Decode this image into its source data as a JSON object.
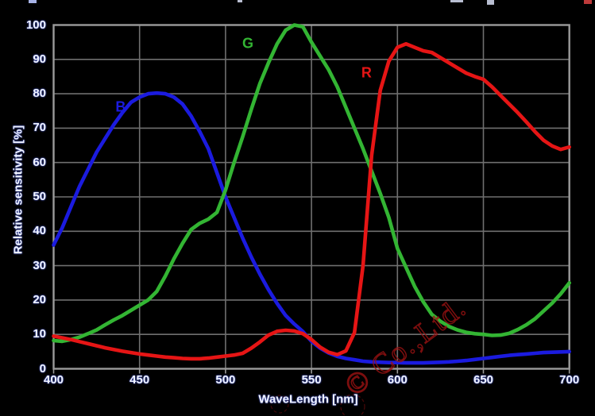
{
  "axes": {
    "x": {
      "title": "WaveLength [nm]",
      "ticks": [
        400,
        450,
        500,
        550,
        600,
        650,
        700
      ]
    },
    "y": {
      "title": "Relative sensitivity [%]",
      "ticks": [
        0,
        10,
        20,
        30,
        40,
        50,
        60,
        70,
        80,
        90,
        100
      ]
    }
  },
  "watermark": {
    "text": "© Co.,Ltd.",
    "color": "#9c1212"
  },
  "colors": {
    "background": "#000000",
    "grid": "#6f6f6f",
    "border": "#9a9a9a",
    "tick_text": "#f0f4ff"
  },
  "chart_data": {
    "type": "line",
    "title": "",
    "xlabel": "WaveLength [nm]",
    "ylabel": "Relative sensitivity [%]",
    "xlim": [
      400,
      700
    ],
    "ylim": [
      0,
      100
    ],
    "grid": true,
    "legend_position": "inline-curve-labels",
    "x": [
      400,
      405,
      410,
      415,
      420,
      425,
      430,
      435,
      440,
      445,
      450,
      455,
      460,
      465,
      470,
      475,
      480,
      485,
      490,
      495,
      500,
      505,
      510,
      515,
      520,
      525,
      530,
      535,
      540,
      545,
      550,
      555,
      560,
      565,
      570,
      575,
      580,
      585,
      590,
      595,
      600,
      605,
      610,
      615,
      620,
      625,
      630,
      635,
      640,
      645,
      650,
      655,
      660,
      665,
      670,
      675,
      680,
      685,
      690,
      695,
      700
    ],
    "series": [
      {
        "name": "B",
        "color": "#1b1bdf",
        "label_at": {
          "x": 439,
          "y": 76
        },
        "values": [
          36,
          41,
          47,
          53,
          58,
          63,
          67,
          71,
          74.5,
          77.5,
          79,
          80,
          80.2,
          80,
          79,
          77,
          73.5,
          69,
          64,
          57,
          50,
          44,
          38,
          32.5,
          27.5,
          23,
          19,
          15.5,
          13,
          10.8,
          8,
          6,
          4.6,
          3.6,
          3,
          2.6,
          2.2,
          2,
          1.9,
          1.8,
          1.8,
          1.7,
          1.7,
          1.7,
          1.8,
          1.9,
          2,
          2.2,
          2.4,
          2.7,
          3,
          3.3,
          3.6,
          3.9,
          4.1,
          4.3,
          4.5,
          4.7,
          4.8,
          4.9,
          5
        ]
      },
      {
        "name": "G",
        "color": "#33b533",
        "label_at": {
          "x": 513,
          "y": 94.5
        },
        "values": [
          8.2,
          8,
          8.5,
          9.2,
          10.2,
          11.3,
          12.8,
          14.2,
          15.5,
          17,
          18.5,
          20,
          22.5,
          27,
          32,
          36.5,
          40.5,
          42.3,
          43.5,
          45.5,
          52,
          60,
          67.5,
          75.5,
          83,
          89,
          94.5,
          98.5,
          100,
          99.5,
          95,
          91,
          87,
          82,
          76,
          70,
          64,
          57.5,
          51,
          44,
          35,
          29.5,
          24,
          19.5,
          15.8,
          13.8,
          12.3,
          11.3,
          10.6,
          10.2,
          10,
          9.7,
          9.8,
          10.3,
          11.4,
          12.8,
          14.5,
          16.8,
          19.1,
          21.8,
          25
        ]
      },
      {
        "name": "R",
        "color": "#e61515",
        "label_at": {
          "x": 582,
          "y": 86
        },
        "values": [
          9.5,
          9,
          8.5,
          7.9,
          7.3,
          6.7,
          6.1,
          5.6,
          5.1,
          4.7,
          4.3,
          4,
          3.7,
          3.4,
          3.2,
          3,
          2.9,
          2.9,
          3.1,
          3.4,
          3.7,
          4,
          4.5,
          6,
          7.8,
          9.8,
          10.9,
          11.2,
          11,
          10.2,
          8.5,
          6.3,
          4.8,
          4.1,
          5.2,
          10.5,
          30,
          62,
          81,
          89.5,
          93.5,
          94.5,
          93.5,
          92.5,
          92,
          90.5,
          89,
          87.5,
          86,
          85,
          84.2,
          82,
          79.5,
          77,
          74.5,
          71.8,
          69,
          66.5,
          64.8,
          63.8,
          64.5
        ]
      }
    ]
  }
}
